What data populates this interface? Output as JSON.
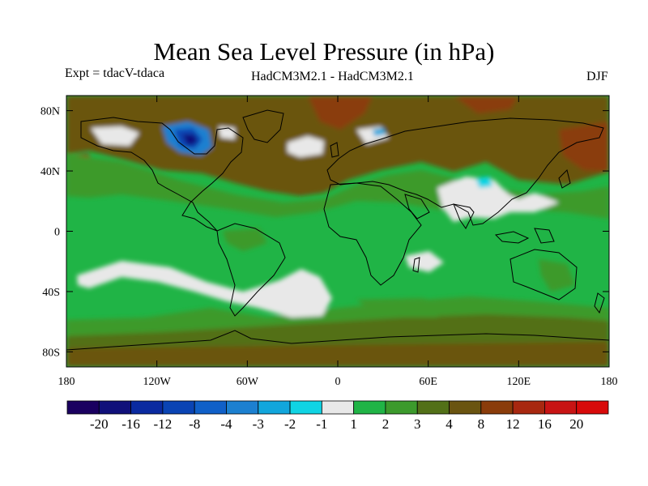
{
  "title": "Mean Sea Level Pressure (in hPa)",
  "experiment": "Expt = tdacV-tdaca",
  "model": "HadCM3M2.1 - HadCM3M2.1",
  "season": "DJF",
  "map": {
    "projection": "cylindrical-equidistant",
    "lon_range": [
      -180,
      180
    ],
    "lat_range": [
      -90,
      90
    ],
    "y_ticks": [
      {
        "lat": 80,
        "label": "80N"
      },
      {
        "lat": 40,
        "label": "40N"
      },
      {
        "lat": 0,
        "label": "0"
      },
      {
        "lat": -40,
        "label": "40S"
      },
      {
        "lat": -80,
        "label": "80S"
      }
    ],
    "x_ticks": [
      {
        "lon": -180,
        "label": "180"
      },
      {
        "lon": -120,
        "label": "120W"
      },
      {
        "lon": -60,
        "label": "60W"
      },
      {
        "lon": 0,
        "label": "0"
      },
      {
        "lon": 60,
        "label": "60E"
      },
      {
        "lon": 120,
        "label": "120E"
      },
      {
        "lon": 180,
        "label": "180"
      }
    ]
  },
  "colorbar": {
    "colors": [
      "#1a0060",
      "#10107a",
      "#0a2aa0",
      "#0a44b4",
      "#1060c8",
      "#1c80d0",
      "#12a6dc",
      "#10d4e4",
      "#e8e8e8",
      "#20b446",
      "#3c9a2c",
      "#527018",
      "#6a5410",
      "#8a3c0a",
      "#a82810",
      "#c81414",
      "#d80a0a"
    ],
    "labels": [
      "-20",
      "-16",
      "-12",
      "-8",
      "-4",
      "-3",
      "-2",
      "-1",
      "1",
      "2",
      "3",
      "4",
      "8",
      "12",
      "16",
      "20"
    ]
  }
}
